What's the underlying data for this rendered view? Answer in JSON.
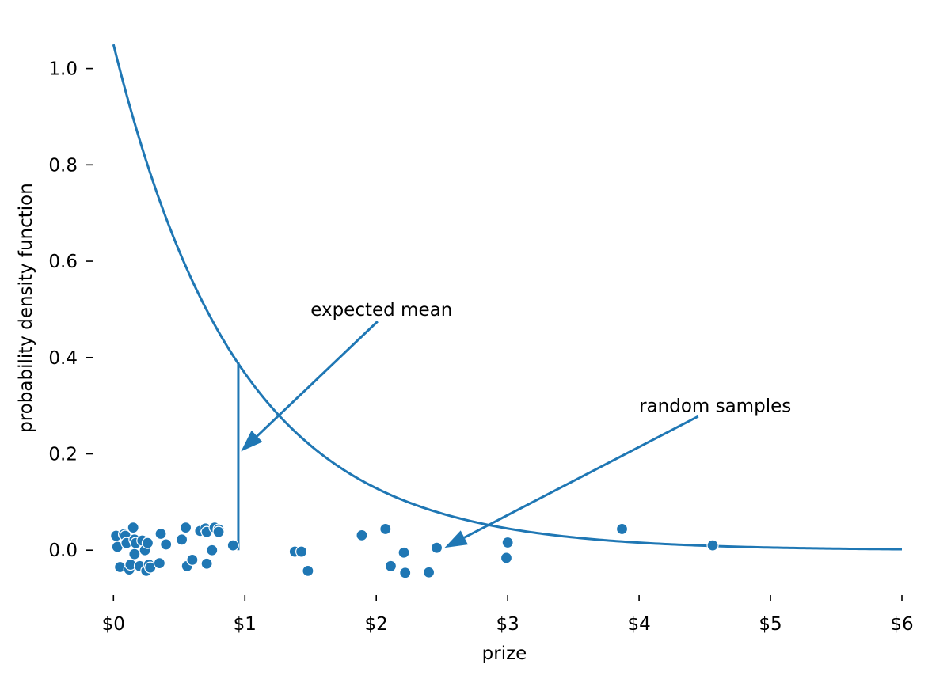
{
  "chart_data": {
    "type": "scatter",
    "xlabel": "prize",
    "ylabel": "probability density function",
    "xlim": [
      -0.05,
      6.0
    ],
    "ylim": [
      -0.09,
      1.07
    ],
    "x_ticks": [
      0,
      1,
      2,
      3,
      4,
      5,
      6
    ],
    "x_tick_labels": [
      "$0",
      "$1",
      "$2",
      "$3",
      "$4",
      "$5",
      "$6"
    ],
    "y_ticks": [
      0.0,
      0.2,
      0.4,
      0.6,
      0.8,
      1.0
    ],
    "y_tick_labels": [
      "0.0",
      "0.2",
      "0.4",
      "0.6",
      "0.8",
      "1.0"
    ],
    "grid": false,
    "color": "#1f77b4",
    "pdf_curve": {
      "kind": "exponential",
      "rate": 1.05,
      "x_range": [
        0,
        6
      ]
    },
    "expected_mean": {
      "x": 0.95,
      "y_top": 0.39
    },
    "annotations": [
      {
        "text": "expected mean",
        "text_at": [
          1.5,
          0.5
        ],
        "arrow_from": [
          2.01,
          0.475
        ],
        "arrow_to": [
          0.97,
          0.205
        ]
      },
      {
        "text": "random samples",
        "text_at": [
          4.0,
          0.3
        ],
        "arrow_from": [
          4.45,
          0.278
        ],
        "arrow_to": [
          2.52,
          0.005
        ]
      }
    ],
    "samples": [
      [
        0.02,
        0.03
      ],
      [
        0.03,
        0.007
      ],
      [
        0.05,
        -0.035
      ],
      [
        0.08,
        0.033
      ],
      [
        0.09,
        0.03
      ],
      [
        0.1,
        0.015
      ],
      [
        0.12,
        -0.04
      ],
      [
        0.13,
        -0.03
      ],
      [
        0.15,
        0.047
      ],
      [
        0.16,
        0.022
      ],
      [
        0.16,
        -0.008
      ],
      [
        0.17,
        0.015
      ],
      [
        0.2,
        -0.033
      ],
      [
        0.22,
        0.02
      ],
      [
        0.24,
        0.0
      ],
      [
        0.25,
        -0.043
      ],
      [
        0.26,
        0.015
      ],
      [
        0.27,
        -0.03
      ],
      [
        0.28,
        -0.036
      ],
      [
        0.35,
        -0.027
      ],
      [
        0.36,
        0.034
      ],
      [
        0.4,
        0.012
      ],
      [
        0.52,
        0.022
      ],
      [
        0.55,
        0.047
      ],
      [
        0.56,
        -0.033
      ],
      [
        0.6,
        -0.02
      ],
      [
        0.66,
        0.04
      ],
      [
        0.7,
        0.045
      ],
      [
        0.71,
        0.038
      ],
      [
        0.71,
        -0.028
      ],
      [
        0.75,
        0.0
      ],
      [
        0.77,
        0.047
      ],
      [
        0.8,
        0.043
      ],
      [
        0.8,
        0.038
      ],
      [
        0.91,
        0.01
      ],
      [
        1.38,
        -0.003
      ],
      [
        1.43,
        -0.003
      ],
      [
        1.48,
        -0.043
      ],
      [
        1.89,
        0.031
      ],
      [
        2.07,
        0.044
      ],
      [
        2.11,
        -0.033
      ],
      [
        2.21,
        -0.005
      ],
      [
        2.22,
        -0.047
      ],
      [
        2.4,
        -0.046
      ],
      [
        2.46,
        0.005
      ],
      [
        2.99,
        -0.016
      ],
      [
        3.0,
        0.016
      ],
      [
        3.87,
        0.044
      ],
      [
        4.56,
        0.01
      ]
    ]
  }
}
